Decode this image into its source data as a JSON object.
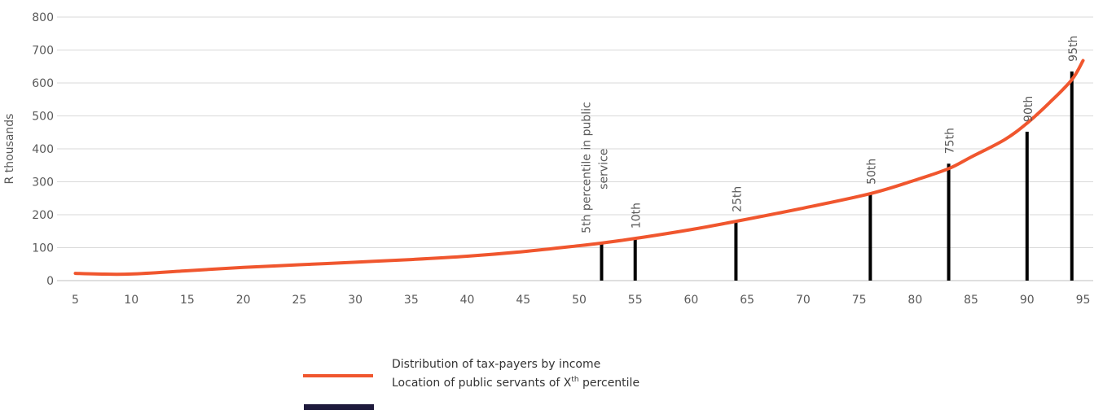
{
  "chart_data": {
    "type": "line",
    "ylabel": "R thousands",
    "xlabel": "",
    "ylim": [
      0,
      800
    ],
    "xlim": [
      5,
      95
    ],
    "y_ticks": [
      "0",
      "100",
      "200",
      "300",
      "400",
      "500",
      "600",
      "700",
      "800"
    ],
    "x_ticks": [
      "5",
      "10",
      "15",
      "20",
      "25",
      "30",
      "35",
      "40",
      "45",
      "50",
      "55",
      "60",
      "65",
      "70",
      "75",
      "80",
      "85",
      "90",
      "95"
    ],
    "grid": "horizontal",
    "legend_placement": "bottom-center",
    "series": [
      {
        "name": "Distribution of tax-payers by income",
        "color": "#f0562e",
        "x": [
          5,
          7,
          10,
          15,
          20,
          25,
          30,
          35,
          40,
          45,
          50,
          52,
          55,
          60,
          64,
          70,
          76,
          80,
          83,
          85,
          88,
          90,
          92,
          94,
          95
        ],
        "y": [
          22,
          20,
          20,
          30,
          40,
          48,
          56,
          64,
          74,
          88,
          106,
          114,
          128,
          155,
          180,
          220,
          264,
          305,
          340,
          375,
          428,
          478,
          540,
          610,
          668
        ]
      },
      {
        "name": "Location of public servants of Xth percentile",
        "name_parts": {
          "prefix": "Location of public servants of X",
          "sup": "th",
          "suffix": " percentile"
        },
        "color": "#000000",
        "legend_color": "#1e1a3c",
        "bars": [
          {
            "x": 52,
            "y": 114,
            "label": "5th percentile in public service"
          },
          {
            "x": 55,
            "y": 128,
            "label": "10th"
          },
          {
            "x": 64,
            "y": 178,
            "label": "25th"
          },
          {
            "x": 76,
            "y": 262,
            "label": "50th"
          },
          {
            "x": 83,
            "y": 355,
            "label": "75th"
          },
          {
            "x": 90,
            "y": 452,
            "label": "90th"
          },
          {
            "x": 94,
            "y": 635,
            "label": "95th"
          }
        ]
      }
    ]
  }
}
